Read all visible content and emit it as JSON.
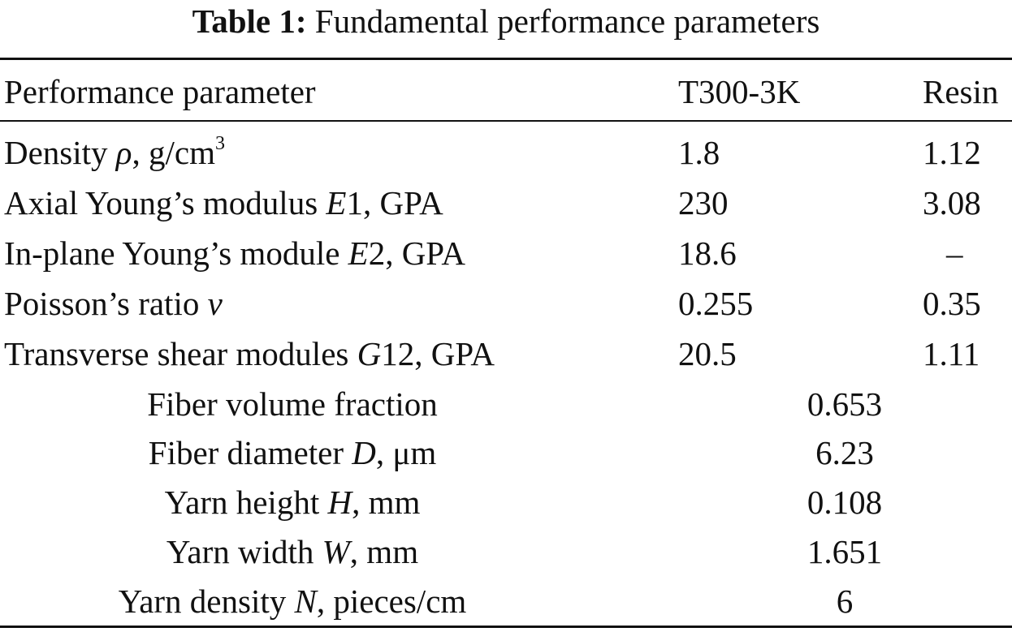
{
  "table": {
    "caption_label": "Table 1:",
    "caption_text": "Fundamental performance parameters",
    "headers": [
      "Performance parameter",
      "T300-3K",
      "Resin"
    ],
    "rows": [
      {
        "param_pre": "Density ",
        "param_sym": "ρ",
        "param_post": ", g/cm",
        "param_sup": "3",
        "t300": "1.8",
        "resin": "1.12"
      },
      {
        "param_pre": "Axial Young’s modulus ",
        "param_sym": "E",
        "param_post": "1, GPA",
        "param_sup": "",
        "t300": "230",
        "resin": "3.08"
      },
      {
        "param_pre": "In-plane Young’s module ",
        "param_sym": "E",
        "param_post": "2, GPA",
        "param_sup": "",
        "t300": "18.6",
        "resin": "–"
      },
      {
        "param_pre": "Poisson’s ratio ",
        "param_sym": "ν",
        "param_post": "",
        "param_sup": "",
        "t300": "0.255",
        "resin": "0.35"
      },
      {
        "param_pre": "Transverse shear modules ",
        "param_sym": "G",
        "param_post": "12, GPA",
        "param_sup": "",
        "t300": "20.5",
        "resin": "1.11"
      }
    ],
    "span_rows": [
      {
        "param_pre": "Fiber volume fraction",
        "param_sym": "",
        "param_post": "",
        "value": "0.653"
      },
      {
        "param_pre": "Fiber diameter ",
        "param_sym": "D",
        "param_post": ", μm",
        "value": "6.23"
      },
      {
        "param_pre": "Yarn height ",
        "param_sym": "H",
        "param_post": ", mm",
        "value": "0.108"
      },
      {
        "param_pre": "Yarn width ",
        "param_sym": "W",
        "param_post": ", mm",
        "value": "1.651"
      },
      {
        "param_pre": "Yarn density ",
        "param_sym": "N",
        "param_post": ", pieces/cm",
        "value": "6"
      }
    ]
  }
}
